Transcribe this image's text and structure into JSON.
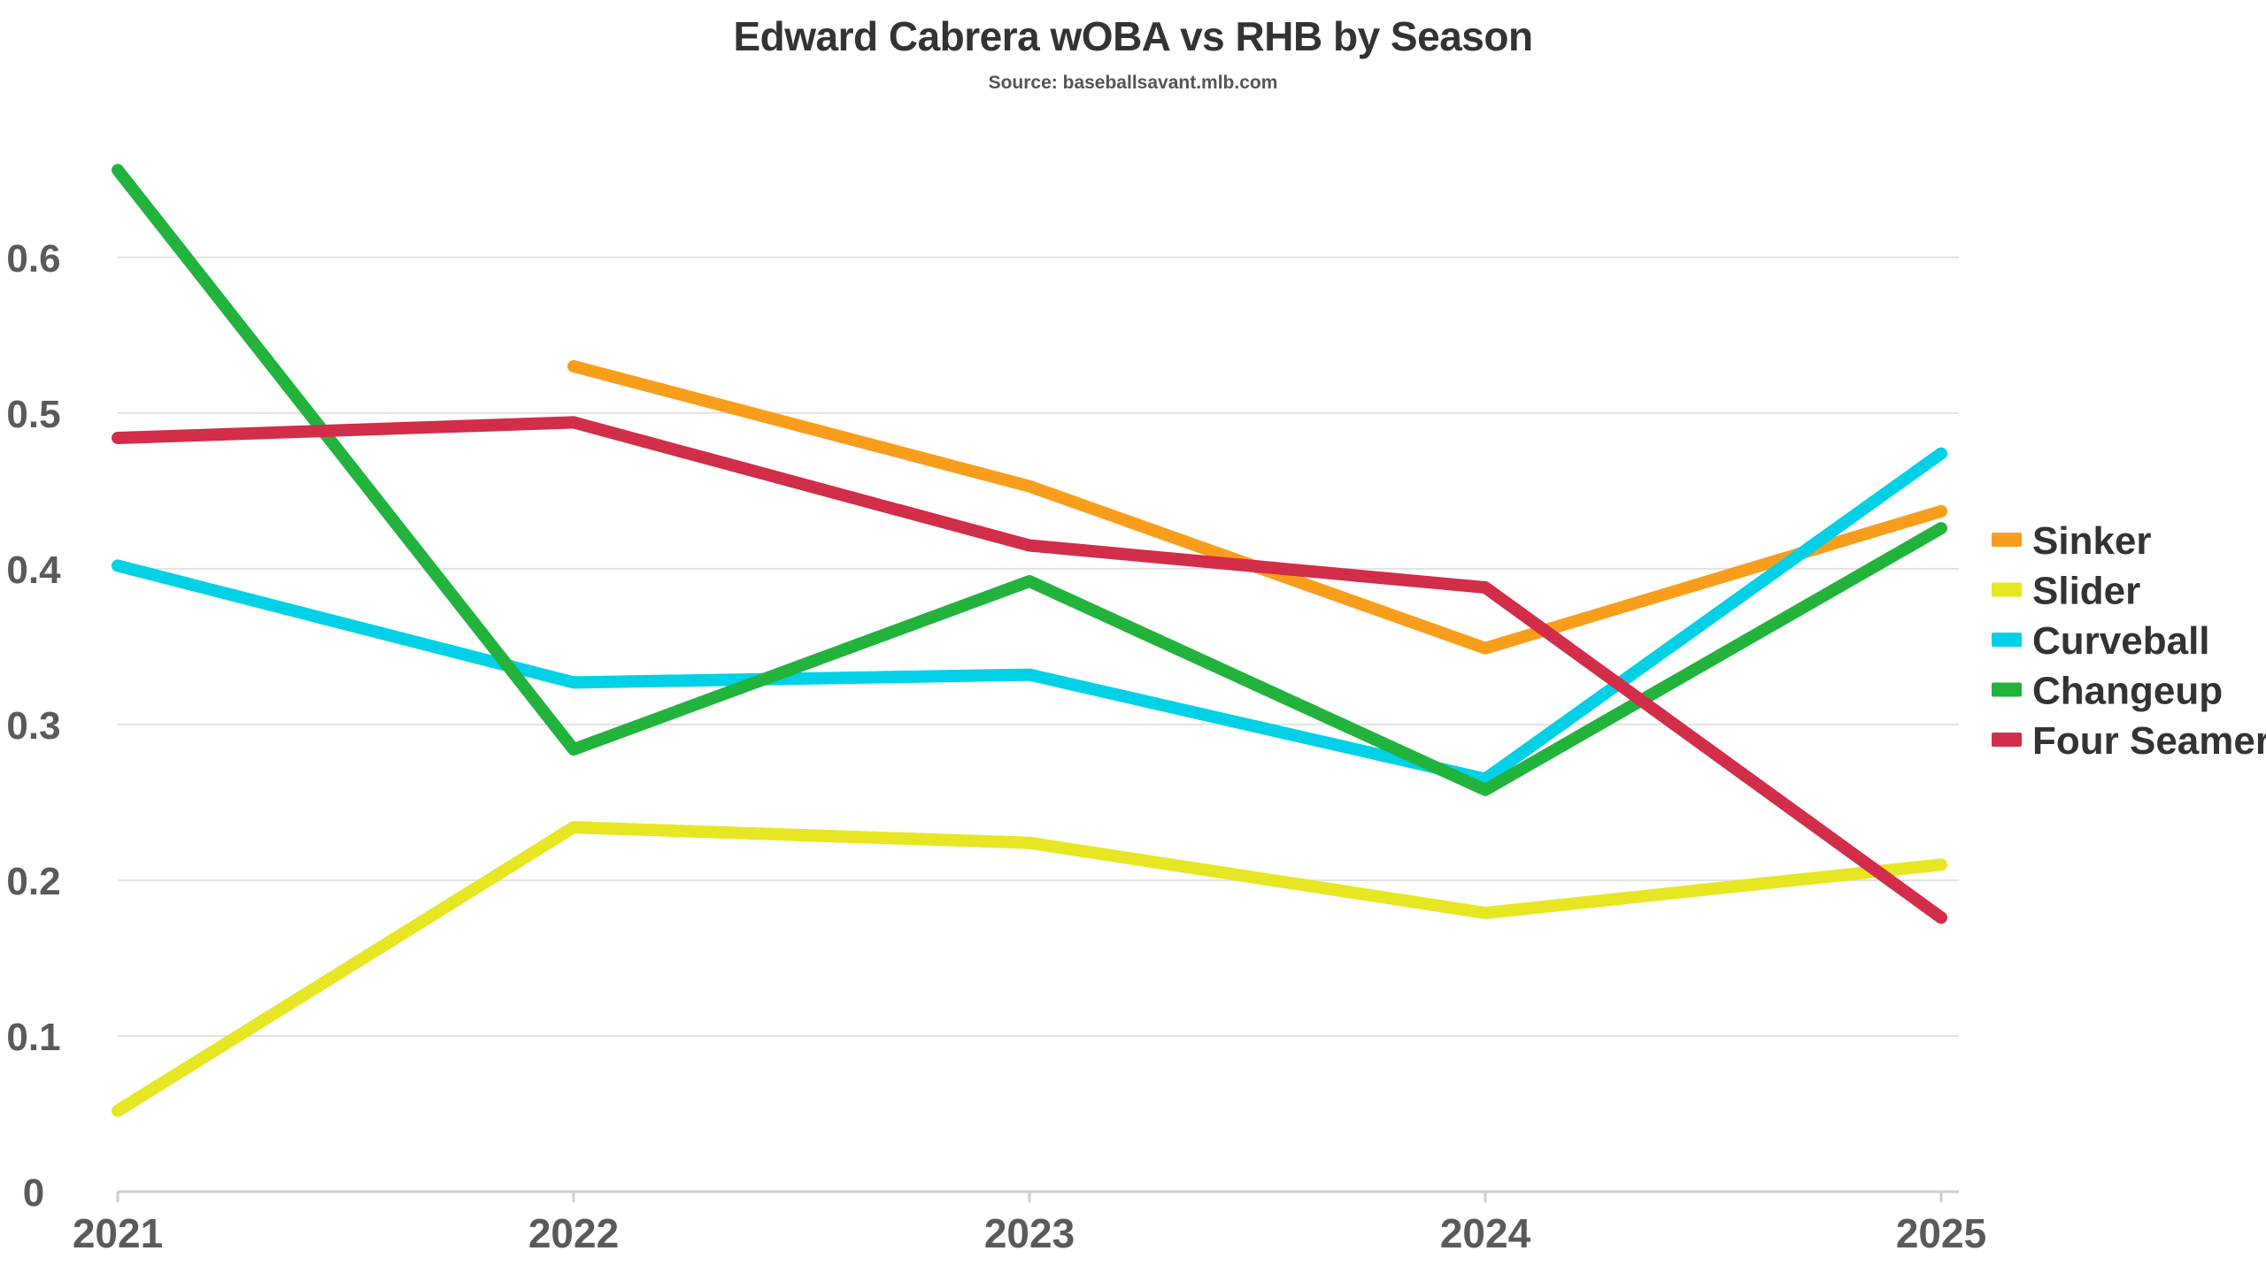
{
  "chart_data": {
    "type": "line",
    "title": "Edward Cabrera wOBA vs RHB by Season",
    "subtitle": "Source: baseballsavant.mlb.com",
    "xlabel": "",
    "ylabel": "",
    "categories": [
      "2021",
      "2022",
      "2023",
      "2024",
      "2025"
    ],
    "ylim": [
      0,
      0.68
    ],
    "y_ticks": [
      "0",
      "0.1",
      "0.2",
      "0.3",
      "0.4",
      "0.5",
      "0.6"
    ],
    "grid": "horizontal",
    "legend_position": "right",
    "series": [
      {
        "name": "Sinker",
        "color": "#F99E1C",
        "values": [
          null,
          0.53,
          0.453,
          0.349,
          0.437
        ]
      },
      {
        "name": "Slider",
        "color": "#E6E623",
        "values": [
          0.052,
          0.234,
          0.224,
          0.179,
          0.21
        ]
      },
      {
        "name": "Curveball",
        "color": "#00D1E6",
        "values": [
          0.402,
          0.327,
          0.332,
          0.265,
          0.474
        ]
      },
      {
        "name": "Changeup",
        "color": "#22B33C",
        "values": [
          0.656,
          0.284,
          0.392,
          0.258,
          0.426
        ]
      },
      {
        "name": "Four Seamer",
        "color": "#D22D49",
        "values": [
          0.484,
          0.494,
          0.415,
          0.388,
          0.176
        ]
      }
    ]
  }
}
